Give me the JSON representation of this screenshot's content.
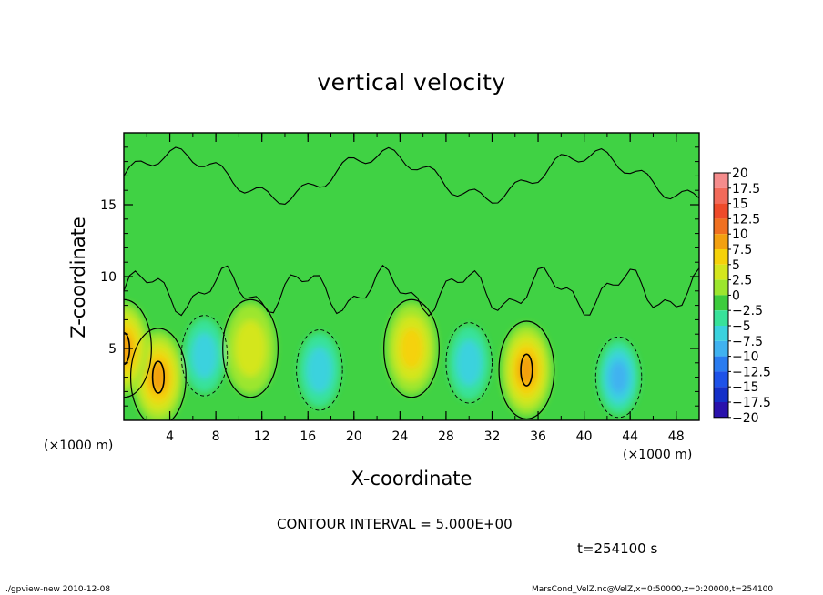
{
  "chart_data": {
    "type": "heatmap",
    "title": "vertical velocity",
    "xlabel": "X-coordinate",
    "ylabel": "Z-coordinate",
    "x_multiplier_label": "(×1000 m)",
    "x_ticks": [
      4,
      8,
      12,
      16,
      20,
      24,
      28,
      32,
      36,
      40,
      44,
      48
    ],
    "y_ticks": [
      5,
      10,
      15
    ],
    "xlim": [
      0,
      50
    ],
    "ylim": [
      0,
      20
    ],
    "contour_interval_label": "CONTOUR INTERVAL = 5.000E+00",
    "time_label": "t=254100 s",
    "colorbar": {
      "labels": [
        "20",
        "17.5",
        "15",
        "12.5",
        "10",
        "7.5",
        "5",
        "2.5",
        "0",
        "−2.5",
        "−5",
        "−7.5",
        "−10",
        "−12.5",
        "−15",
        "−17.5",
        "−20"
      ],
      "colors": [
        "#f58c8c",
        "#f26a5a",
        "#ee4a2a",
        "#f07020",
        "#f2a010",
        "#f5d20a",
        "#d4e61e",
        "#9ce62e",
        "#3dcc3d",
        "#38e29a",
        "#3ad2de",
        "#40b2f0",
        "#2a7cf0",
        "#1e52e8",
        "#1430c8",
        "#2a12ac",
        "#7a2ab2"
      ]
    },
    "features": [
      {
        "kind": "updraft",
        "x": 3,
        "z": 3,
        "peak": 12
      },
      {
        "kind": "updraft",
        "x": 0,
        "z": 5,
        "peak": 12
      },
      {
        "kind": "updraft",
        "x": 35,
        "z": 3.5,
        "peak": 12
      },
      {
        "kind": "updraft",
        "x": 25,
        "z": 5,
        "peak": 8
      },
      {
        "kind": "updraft",
        "x": 11,
        "z": 5,
        "peak": 6
      },
      {
        "kind": "downdraft",
        "x": 7,
        "z": 4.5,
        "peak": -6
      },
      {
        "kind": "downdraft",
        "x": 17,
        "z": 3.5,
        "peak": -7
      },
      {
        "kind": "downdraft",
        "x": 30,
        "z": 4,
        "peak": -7
      },
      {
        "kind": "downdraft",
        "x": 43,
        "z": 3,
        "peak": -9
      }
    ]
  },
  "footer": {
    "left": "./gpview-new  2010-12-08",
    "right": "MarsCond_VelZ.nc@VelZ,x=0:50000,z=0:20000,t=254100"
  }
}
